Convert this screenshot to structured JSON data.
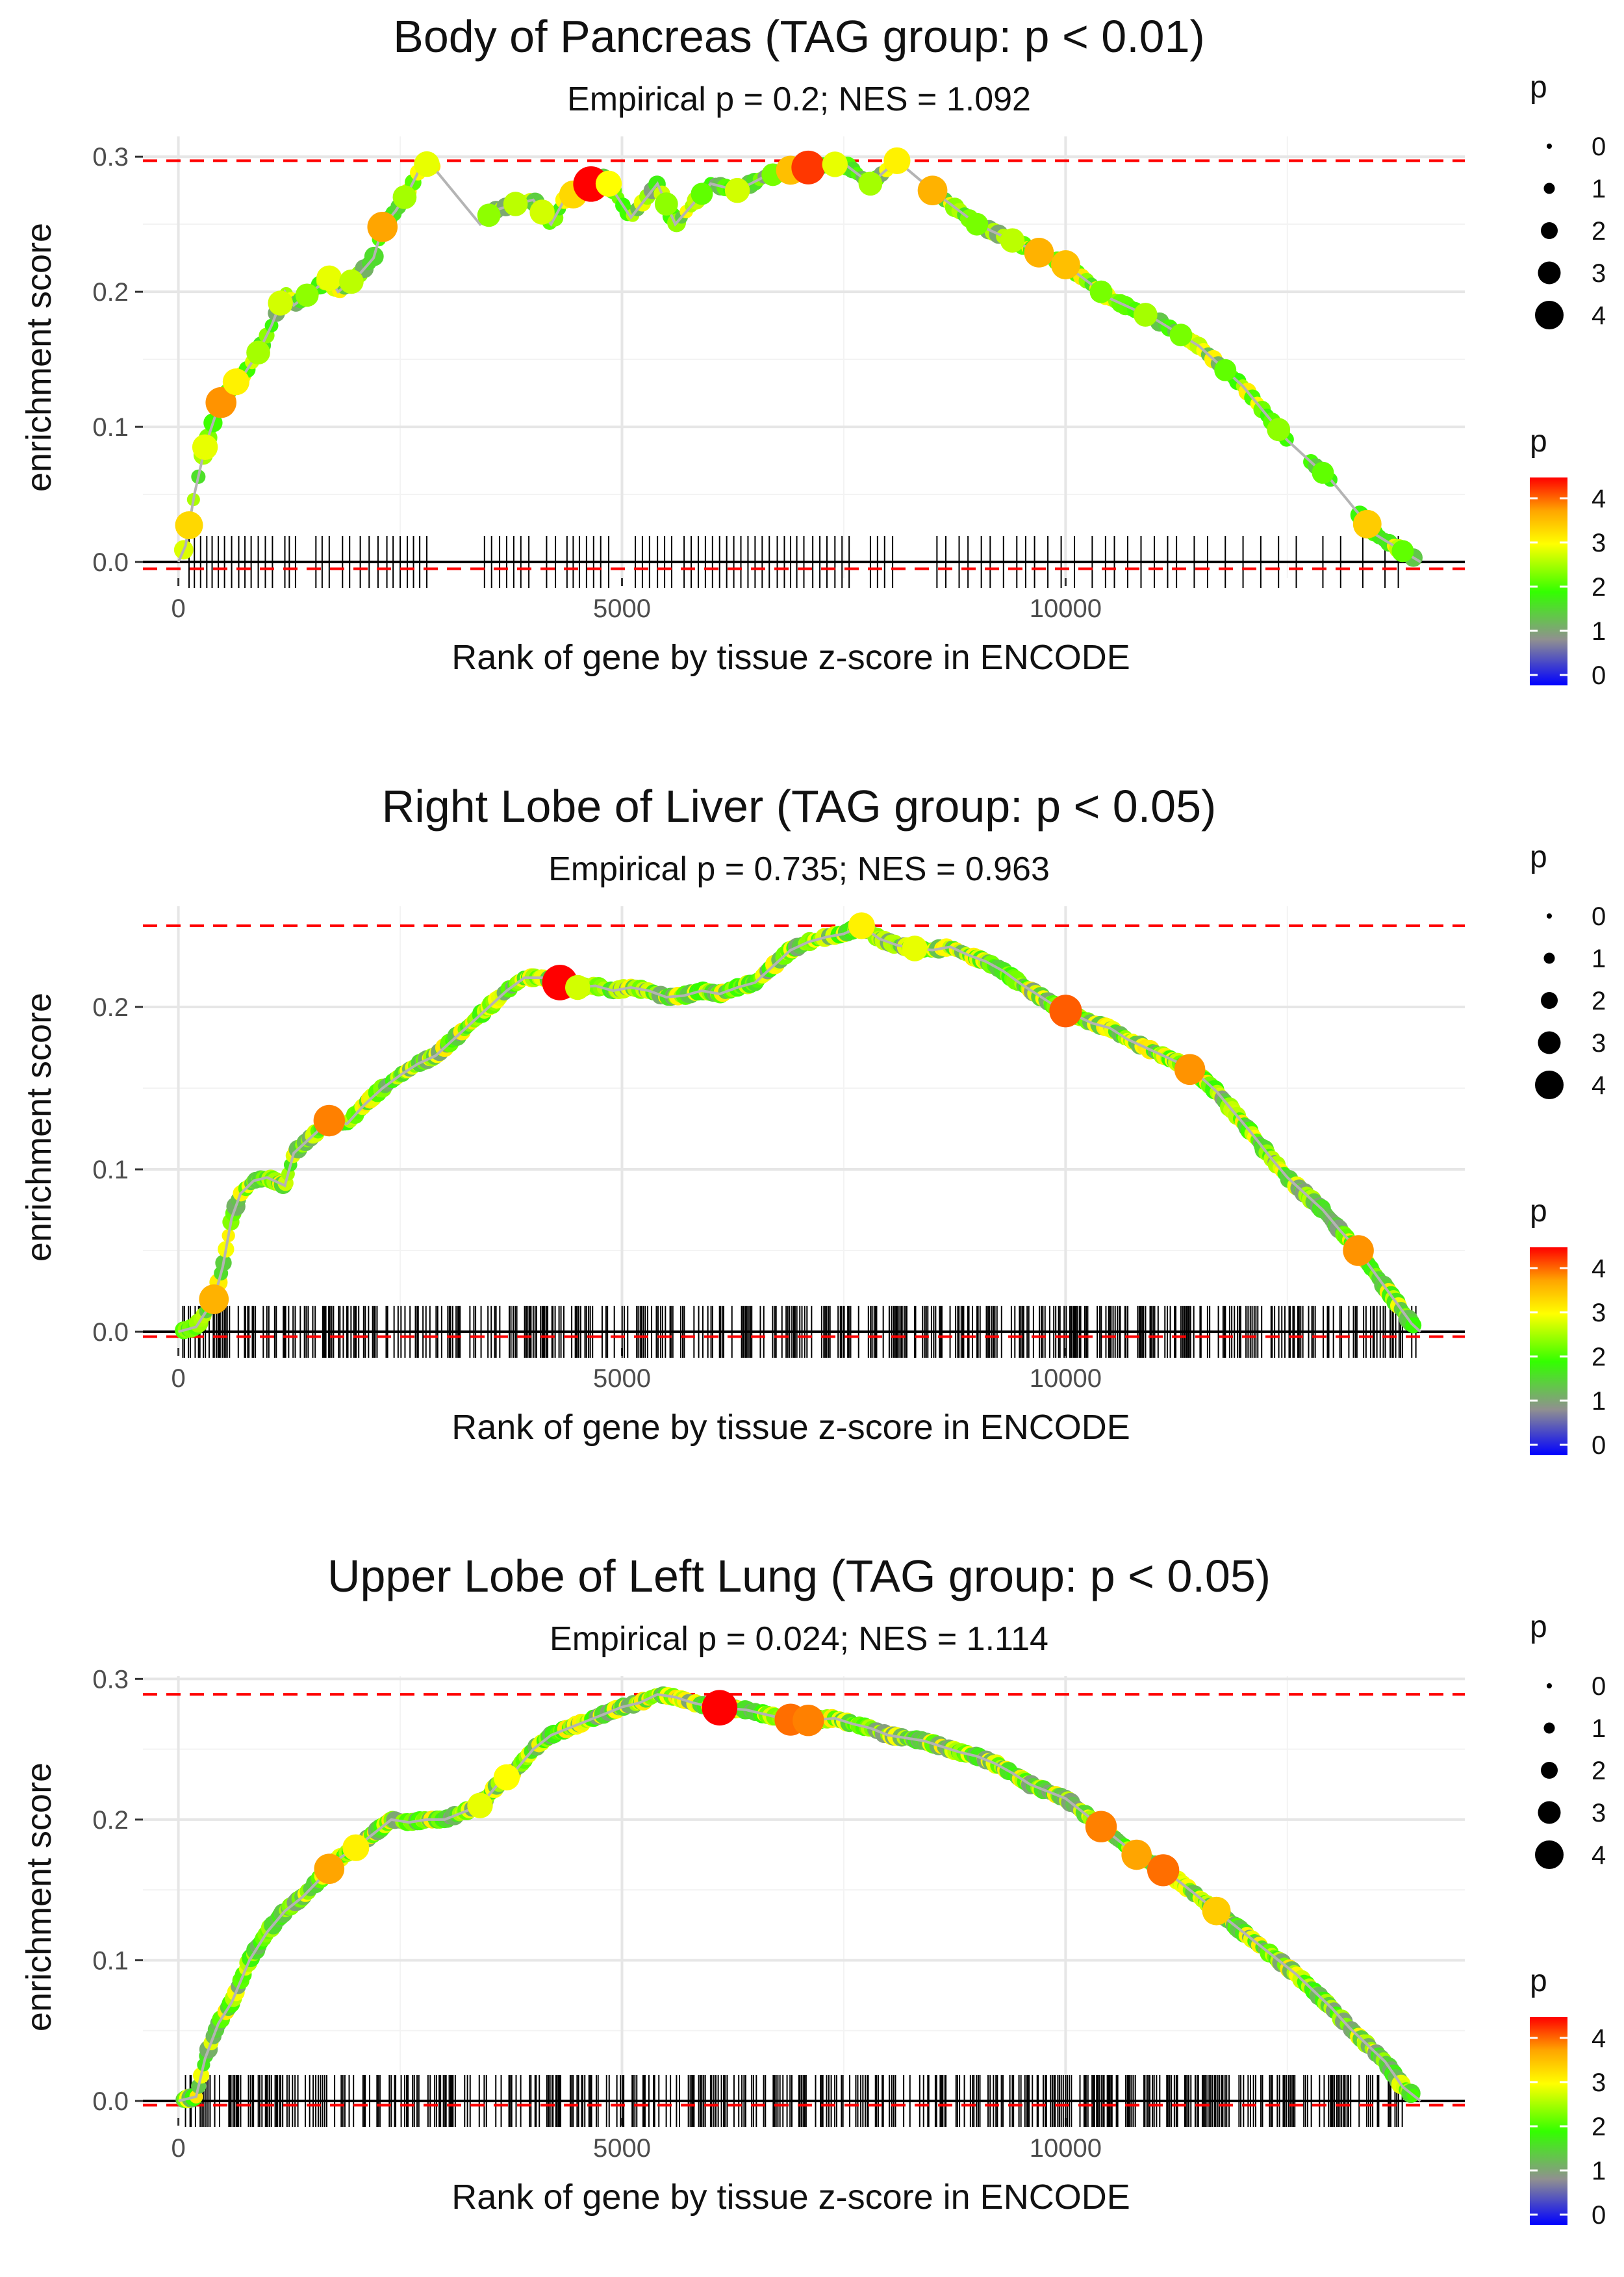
{
  "legend_labels": {
    "size_title": "p",
    "color_title": "p"
  },
  "size_legend_values": [
    "0",
    "1",
    "2",
    "3",
    "4"
  ],
  "color_legend_ticks": [
    "4",
    "3",
    "2",
    "1",
    "0"
  ],
  "chart_data": [
    {
      "type": "line",
      "title": "Body of Pancreas (TAG group: p < 0.01)",
      "subtitle": "Empirical p = 0.2; NES = 1.092",
      "xlabel": "Rank of gene by tissue z-score in ENCODE",
      "ylabel": "enrichment score",
      "xlim": [
        -400,
        14500
      ],
      "ylim": [
        -0.012,
        0.315
      ],
      "x_ticks": [
        0,
        5000,
        10000
      ],
      "x_tick_labels": [
        "0",
        "5000",
        "10000"
      ],
      "y_ticks": [
        0.0,
        0.1,
        0.2,
        0.3
      ],
      "y_tick_labels": [
        "0.0",
        "0.1",
        "0.2",
        "0.3"
      ],
      "max_es": 0.297,
      "min_es": -0.005,
      "es_curve": [
        [
          0,
          0
        ],
        [
          80,
          0.012
        ],
        [
          180,
          0.05
        ],
        [
          300,
          0.085
        ],
        [
          450,
          0.115
        ],
        [
          600,
          0.13
        ],
        [
          750,
          0.14
        ],
        [
          900,
          0.155
        ],
        [
          1050,
          0.175
        ],
        [
          1200,
          0.2
        ],
        [
          1300,
          0.19
        ],
        [
          1500,
          0.2
        ],
        [
          1700,
          0.21
        ],
        [
          1800,
          0.2
        ],
        [
          2000,
          0.21
        ],
        [
          2200,
          0.225
        ],
        [
          2300,
          0.248
        ],
        [
          2450,
          0.26
        ],
        [
          2600,
          0.275
        ],
        [
          2750,
          0.295
        ],
        [
          2850,
          0.294
        ],
        [
          3400,
          0.25
        ],
        [
          3550,
          0.26
        ],
        [
          3800,
          0.265
        ],
        [
          4000,
          0.268
        ],
        [
          4200,
          0.25
        ],
        [
          4350,
          0.268
        ],
        [
          4600,
          0.278
        ],
        [
          4800,
          0.285
        ],
        [
          5100,
          0.255
        ],
        [
          5400,
          0.28
        ],
        [
          5600,
          0.25
        ],
        [
          5800,
          0.265
        ],
        [
          6000,
          0.28
        ],
        [
          6300,
          0.275
        ],
        [
          6600,
          0.285
        ],
        [
          6900,
          0.29
        ],
        [
          7200,
          0.293
        ],
        [
          7500,
          0.295
        ],
        [
          7800,
          0.28
        ],
        [
          8100,
          0.297
        ],
        [
          8500,
          0.275
        ],
        [
          9000,
          0.25
        ],
        [
          9500,
          0.235
        ],
        [
          10000,
          0.22
        ],
        [
          10500,
          0.195
        ],
        [
          11000,
          0.18
        ],
        [
          11500,
          0.16
        ],
        [
          12000,
          0.13
        ],
        [
          12500,
          0.09
        ],
        [
          13000,
          0.06
        ],
        [
          13500,
          0.02
        ],
        [
          14000,
          0
        ]
      ],
      "hit_points": [
        {
          "x": 120,
          "p": 3.0
        },
        {
          "x": 300,
          "p": 2.6
        },
        {
          "x": 480,
          "p": 3.5
        },
        {
          "x": 650,
          "p": 2.8
        },
        {
          "x": 900,
          "p": 2.3
        },
        {
          "x": 1150,
          "p": 2.5
        },
        {
          "x": 1450,
          "p": 2.2
        },
        {
          "x": 1700,
          "p": 2.6
        },
        {
          "x": 1950,
          "p": 2.4
        },
        {
          "x": 2300,
          "p": 3.4
        },
        {
          "x": 2550,
          "p": 2.3
        },
        {
          "x": 2800,
          "p": 2.6
        },
        {
          "x": 3500,
          "p": 2.2
        },
        {
          "x": 3800,
          "p": 2.4
        },
        {
          "x": 4100,
          "p": 2.5
        },
        {
          "x": 4450,
          "p": 3.0
        },
        {
          "x": 4650,
          "p": 4.3
        },
        {
          "x": 4850,
          "p": 2.7
        },
        {
          "x": 5500,
          "p": 2.2
        },
        {
          "x": 5900,
          "p": 2.0
        },
        {
          "x": 6300,
          "p": 2.5
        },
        {
          "x": 6700,
          "p": 2.1
        },
        {
          "x": 6900,
          "p": 3.2
        },
        {
          "x": 7100,
          "p": 4.0
        },
        {
          "x": 7400,
          "p": 2.6
        },
        {
          "x": 7800,
          "p": 2.3
        },
        {
          "x": 8100,
          "p": 2.8
        },
        {
          "x": 8500,
          "p": 3.3
        },
        {
          "x": 9000,
          "p": 2.1
        },
        {
          "x": 9400,
          "p": 2.4
        },
        {
          "x": 9700,
          "p": 3.3
        },
        {
          "x": 10000,
          "p": 3.2
        },
        {
          "x": 10400,
          "p": 2.1
        },
        {
          "x": 10900,
          "p": 2.3
        },
        {
          "x": 11300,
          "p": 2.1
        },
        {
          "x": 11800,
          "p": 2.0
        },
        {
          "x": 12400,
          "p": 2.2
        },
        {
          "x": 12900,
          "p": 2.0
        },
        {
          "x": 13400,
          "p": 3.1
        },
        {
          "x": 13800,
          "p": 2.0
        }
      ],
      "hit_ranks": [
        120,
        180,
        250,
        320,
        380,
        450,
        520,
        600,
        680,
        750,
        820,
        900,
        980,
        1060,
        1200,
        1250,
        1320,
        1550,
        1620,
        1700,
        1850,
        1930,
        2050,
        2150,
        2250,
        2350,
        2420,
        2500,
        2580,
        2650,
        2720,
        2800,
        3450,
        3530,
        3620,
        3700,
        3780,
        3860,
        3950,
        4150,
        4250,
        4380,
        4450,
        4520,
        4600,
        4680,
        4760,
        4850,
        5150,
        5230,
        5310,
        5400,
        5480,
        5560,
        5700,
        5780,
        5860,
        5940,
        6020,
        6100,
        6180,
        6260,
        6340,
        6420,
        6500,
        6580,
        6660,
        6750,
        6830,
        6900,
        6970,
        7050,
        7150,
        7230,
        7310,
        7400,
        7480,
        7560,
        7800,
        7880,
        7960,
        8050,
        8550,
        8650,
        8800,
        8900,
        9050,
        9150,
        9300,
        9450,
        9550,
        9650,
        9800,
        9950,
        10100,
        10300,
        10450,
        10550,
        10700,
        10850,
        11000,
        11150,
        11250,
        11450,
        11600,
        11800,
        12000,
        12200,
        12400,
        12600,
        12900,
        13100,
        13350,
        13600,
        13750
      ]
    },
    {
      "type": "line",
      "title": "Right Lobe of Liver (TAG group: p < 0.05)",
      "subtitle": "Empirical p = 0.735; NES = 0.963",
      "xlabel": "Rank of gene by tissue z-score in ENCODE",
      "ylabel": "enrichment score",
      "xlim": [
        -400,
        14500
      ],
      "ylim": [
        -0.01,
        0.262
      ],
      "x_ticks": [
        0,
        5000,
        10000
      ],
      "x_tick_labels": [
        "0",
        "5000",
        "10000"
      ],
      "y_ticks": [
        0.0,
        0.1,
        0.2
      ],
      "y_tick_labels": [
        "0.0",
        "0.1",
        "0.2"
      ],
      "max_es": 0.25,
      "min_es": -0.003,
      "es_curve": [
        [
          0,
          0
        ],
        [
          200,
          0.003
        ],
        [
          400,
          0.02
        ],
        [
          500,
          0.04
        ],
        [
          600,
          0.07
        ],
        [
          700,
          0.085
        ],
        [
          850,
          0.093
        ],
        [
          1000,
          0.095
        ],
        [
          1200,
          0.09
        ],
        [
          1300,
          0.11
        ],
        [
          1500,
          0.12
        ],
        [
          1700,
          0.13
        ],
        [
          1900,
          0.128
        ],
        [
          2100,
          0.14
        ],
        [
          2300,
          0.15
        ],
        [
          2500,
          0.158
        ],
        [
          2700,
          0.165
        ],
        [
          2900,
          0.17
        ],
        [
          3100,
          0.18
        ],
        [
          3300,
          0.19
        ],
        [
          3500,
          0.2
        ],
        [
          3700,
          0.21
        ],
        [
          3900,
          0.218
        ],
        [
          4100,
          0.218
        ],
        [
          4300,
          0.215
        ],
        [
          4500,
          0.212
        ],
        [
          4700,
          0.213
        ],
        [
          4900,
          0.21
        ],
        [
          5100,
          0.212
        ],
        [
          5300,
          0.21
        ],
        [
          5500,
          0.206
        ],
        [
          5700,
          0.207
        ],
        [
          5900,
          0.21
        ],
        [
          6100,
          0.208
        ],
        [
          6300,
          0.212
        ],
        [
          6500,
          0.215
        ],
        [
          6700,
          0.225
        ],
        [
          6900,
          0.235
        ],
        [
          7100,
          0.24
        ],
        [
          7300,
          0.243
        ],
        [
          7500,
          0.245
        ],
        [
          7700,
          0.25
        ],
        [
          7900,
          0.242
        ],
        [
          8100,
          0.238
        ],
        [
          8300,
          0.236
        ],
        [
          8500,
          0.235
        ],
        [
          8700,
          0.237
        ],
        [
          8900,
          0.232
        ],
        [
          9100,
          0.228
        ],
        [
          9300,
          0.222
        ],
        [
          9500,
          0.214
        ],
        [
          9700,
          0.207
        ],
        [
          9900,
          0.2
        ],
        [
          10100,
          0.195
        ],
        [
          10300,
          0.19
        ],
        [
          10500,
          0.187
        ],
        [
          10700,
          0.18
        ],
        [
          10900,
          0.175
        ],
        [
          11100,
          0.17
        ],
        [
          11300,
          0.165
        ],
        [
          11500,
          0.158
        ],
        [
          11700,
          0.148
        ],
        [
          11900,
          0.135
        ],
        [
          12100,
          0.122
        ],
        [
          12300,
          0.108
        ],
        [
          12500,
          0.095
        ],
        [
          12700,
          0.085
        ],
        [
          12900,
          0.075
        ],
        [
          13100,
          0.062
        ],
        [
          13300,
          0.05
        ],
        [
          13500,
          0.035
        ],
        [
          13700,
          0.02
        ],
        [
          13900,
          0.005
        ],
        [
          14000,
          0
        ]
      ],
      "hit_points": [
        {
          "x": 400,
          "p": 3.3
        },
        {
          "x": 1700,
          "p": 3.6
        },
        {
          "x": 4300,
          "p": 4.3
        },
        {
          "x": 4500,
          "p": 2.5
        },
        {
          "x": 7700,
          "p": 2.8
        },
        {
          "x": 8300,
          "p": 2.6
        },
        {
          "x": 10000,
          "p": 3.8
        },
        {
          "x": 11400,
          "p": 3.5
        },
        {
          "x": 13300,
          "p": 3.5
        }
      ],
      "hit_density": 1,
      "hit_range": [
        50,
        13950
      ]
    },
    {
      "type": "line",
      "title": "Upper Lobe of Left Lung (TAG group: p < 0.05)",
      "subtitle": "Empirical p = 0.024; NES = 1.114",
      "xlabel": "Rank of gene by tissue z-score in ENCODE",
      "ylabel": "enrichment score",
      "xlim": [
        -400,
        14500
      ],
      "ylim": [
        -0.012,
        0.302
      ],
      "x_ticks": [
        0,
        5000,
        10000
      ],
      "x_tick_labels": [
        "0",
        "5000",
        "10000"
      ],
      "y_ticks": [
        0.0,
        0.1,
        0.2,
        0.3
      ],
      "y_tick_labels": [
        "0.0",
        "0.1",
        "0.2",
        "0.3"
      ],
      "max_es": 0.289,
      "min_es": -0.003,
      "es_curve": [
        [
          0,
          0
        ],
        [
          200,
          0.003
        ],
        [
          300,
          0.03
        ],
        [
          450,
          0.055
        ],
        [
          600,
          0.07
        ],
        [
          800,
          0.1
        ],
        [
          1000,
          0.12
        ],
        [
          1200,
          0.135
        ],
        [
          1400,
          0.145
        ],
        [
          1600,
          0.158
        ],
        [
          1800,
          0.172
        ],
        [
          2000,
          0.18
        ],
        [
          2200,
          0.19
        ],
        [
          2400,
          0.2
        ],
        [
          2600,
          0.198
        ],
        [
          2800,
          0.2
        ],
        [
          3000,
          0.2
        ],
        [
          3200,
          0.205
        ],
        [
          3400,
          0.21
        ],
        [
          3600,
          0.225
        ],
        [
          3800,
          0.235
        ],
        [
          4000,
          0.25
        ],
        [
          4200,
          0.26
        ],
        [
          4400,
          0.265
        ],
        [
          4600,
          0.27
        ],
        [
          4800,
          0.275
        ],
        [
          5000,
          0.28
        ],
        [
          5200,
          0.283
        ],
        [
          5400,
          0.289
        ],
        [
          5600,
          0.287
        ],
        [
          5800,
          0.283
        ],
        [
          6000,
          0.28
        ],
        [
          6200,
          0.279
        ],
        [
          6400,
          0.278
        ],
        [
          6600,
          0.275
        ],
        [
          6800,
          0.272
        ],
        [
          7000,
          0.27
        ],
        [
          7200,
          0.271
        ],
        [
          7400,
          0.272
        ],
        [
          7600,
          0.268
        ],
        [
          7800,
          0.265
        ],
        [
          8000,
          0.26
        ],
        [
          8200,
          0.258
        ],
        [
          8400,
          0.256
        ],
        [
          8600,
          0.252
        ],
        [
          8800,
          0.248
        ],
        [
          9000,
          0.245
        ],
        [
          9200,
          0.24
        ],
        [
          9400,
          0.233
        ],
        [
          9600,
          0.225
        ],
        [
          9800,
          0.22
        ],
        [
          10000,
          0.215
        ],
        [
          10200,
          0.205
        ],
        [
          10400,
          0.195
        ],
        [
          10600,
          0.185
        ],
        [
          10800,
          0.175
        ],
        [
          11000,
          0.168
        ],
        [
          11200,
          0.16
        ],
        [
          11400,
          0.15
        ],
        [
          11600,
          0.14
        ],
        [
          11800,
          0.13
        ],
        [
          12000,
          0.12
        ],
        [
          12200,
          0.11
        ],
        [
          12400,
          0.1
        ],
        [
          12600,
          0.09
        ],
        [
          12800,
          0.078
        ],
        [
          13000,
          0.066
        ],
        [
          13200,
          0.052
        ],
        [
          13400,
          0.04
        ],
        [
          13600,
          0.028
        ],
        [
          13800,
          0.01
        ],
        [
          14000,
          0
        ]
      ],
      "hit_points": [
        {
          "x": 1700,
          "p": 3.4
        },
        {
          "x": 2000,
          "p": 2.8
        },
        {
          "x": 3400,
          "p": 2.6
        },
        {
          "x": 3700,
          "p": 2.7
        },
        {
          "x": 6100,
          "p": 4.3
        },
        {
          "x": 6900,
          "p": 3.7
        },
        {
          "x": 7100,
          "p": 3.6
        },
        {
          "x": 10400,
          "p": 3.6
        },
        {
          "x": 10800,
          "p": 3.4
        },
        {
          "x": 11100,
          "p": 3.7
        },
        {
          "x": 11700,
          "p": 3.1
        }
      ],
      "hit_density": 1,
      "hit_range": [
        80,
        13800
      ]
    }
  ]
}
